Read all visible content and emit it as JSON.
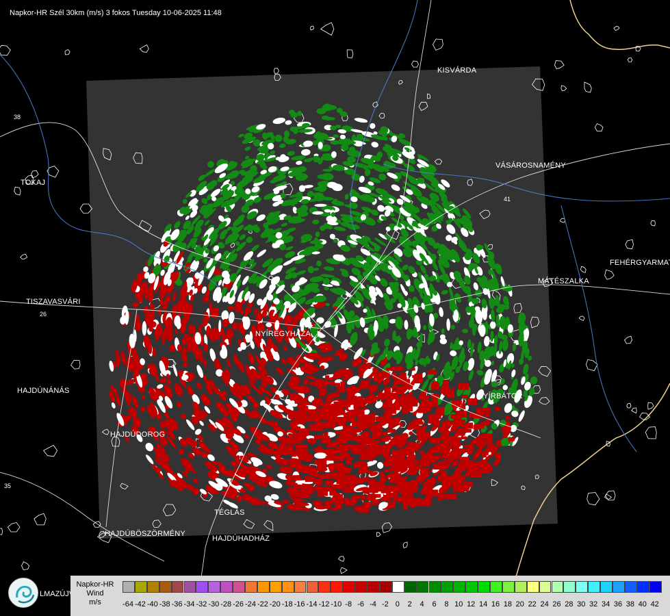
{
  "title": "Napkor-HR Szél 30km (m/s) 3 fokos Tuesday 10-06-2025 11:48",
  "cities": [
    {
      "id": "kisvarda",
      "name": "KISVÁRDA"
    },
    {
      "id": "tokaj",
      "name": "TOKAJ"
    },
    {
      "id": "vasarosnameny",
      "name": "VÁSÁROSNAMÉNY"
    },
    {
      "id": "fehergyarmat",
      "name": "FEHÉRGYARMAT"
    },
    {
      "id": "mateszalka",
      "name": "MÁTÉSZALKA"
    },
    {
      "id": "tiszavasvari",
      "name": "TISZAVASVÁRI"
    },
    {
      "id": "nyiregyhaza",
      "name": "NYÍREGYHÁZA"
    },
    {
      "id": "hajdunanas",
      "name": "HAJDÚNÁNÁS"
    },
    {
      "id": "nyirbator",
      "name": "NYÍRBÁTOR"
    },
    {
      "id": "hajdudorog",
      "name": "HAJDÚDOROG"
    },
    {
      "id": "teglas",
      "name": "TÉGLÁS"
    },
    {
      "id": "hajduboszormeny",
      "name": "HAJDÚBÖSZÖRMÉNY"
    },
    {
      "id": "hajduhadhaz",
      "name": "HAJDÚHADHÁZ"
    },
    {
      "id": "balmazujvaros",
      "name": "LMAZÚJVÁR"
    }
  ],
  "road_numbers": [
    "38",
    "26",
    "35",
    "41"
  ],
  "legend": {
    "line1": "Napkor-HR",
    "line2": "Wind",
    "line3": "m/s",
    "values": [
      "-64",
      "-42",
      "-40",
      "-38",
      "-36",
      "-34",
      "-32",
      "-30",
      "-28",
      "-26",
      "-24",
      "-22",
      "-20",
      "-18",
      "-16",
      "-14",
      "-12",
      "-10",
      "-8",
      "-6",
      "-4",
      "-2",
      "0",
      "2",
      "4",
      "6",
      "8",
      "10",
      "12",
      "14",
      "16",
      "18",
      "20",
      "22",
      "24",
      "26",
      "28",
      "30",
      "32",
      "34",
      "36",
      "38",
      "40",
      "42"
    ],
    "colors": [
      "#b0b0b0",
      "#a8a800",
      "#b08000",
      "#a85a10",
      "#a04848",
      "#a050a0",
      "#a050f0",
      "#b860e0",
      "#c050c0",
      "#d05090",
      "#f07830",
      "#ff9800",
      "#ffa000",
      "#ff9018",
      "#f58040",
      "#f06038",
      "#ff3010",
      "#ff1800",
      "#e00000",
      "#c80000",
      "#b80000",
      "#a80000",
      "#ffffff",
      "#006400",
      "#007800",
      "#008c00",
      "#00a000",
      "#00b400",
      "#00c800",
      "#00dc00",
      "#40f020",
      "#80f040",
      "#b0f060",
      "#ffff80",
      "#d8ff90",
      "#b0ffb0",
      "#90ffd0",
      "#80fff0",
      "#40f0ff",
      "#20d0ff",
      "#20a0ff",
      "#1060ff",
      "#0030ff",
      "#0000f0"
    ]
  },
  "colors": {
    "background": "#000000",
    "radar_area": "#333333",
    "inbound_green": "#138a13",
    "outbound_red": "#c20000",
    "zero_white": "#ffffff",
    "border": "#f0d090",
    "roads": "#ffffff",
    "rivers": "#4a7fd0"
  }
}
